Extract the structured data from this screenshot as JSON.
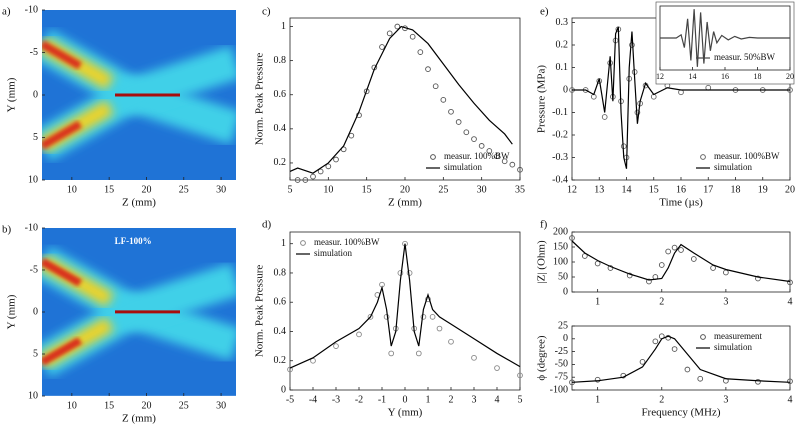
{
  "chart_data": [
    {
      "type": "heatmap",
      "panel_label": "a)",
      "xlabel": "Z (mm)",
      "ylabel": "Y (mm)",
      "xlim": [
        6,
        32
      ],
      "xticks": [
        10,
        15,
        20,
        25,
        30
      ],
      "ylim": [
        10,
        -10
      ],
      "yticks": [
        -10,
        -5,
        0,
        5,
        10
      ]
    },
    {
      "type": "heatmap",
      "panel_label": "b)",
      "annotation": "LF-100%",
      "xlabel": "Z (mm)",
      "ylabel": "Y (mm)",
      "xlim": [
        6,
        32
      ],
      "xticks": [
        10,
        15,
        20,
        25,
        30
      ],
      "ylim": [
        10,
        -10
      ],
      "yticks": [
        -10,
        -5,
        0,
        5,
        10
      ]
    },
    {
      "type": "line",
      "panel_label": "c)",
      "xlabel": "Z (mm)",
      "ylabel": "Norm. Peak Pressure",
      "xlim": [
        5,
        35
      ],
      "xticks": [
        5,
        10,
        15,
        20,
        25,
        30,
        35
      ],
      "ylim": [
        0.1,
        1.05
      ],
      "yticks": [
        0.2,
        0.4,
        0.6,
        0.8,
        1
      ],
      "legend": "lower right",
      "series": [
        {
          "name": "measur. 100%BW",
          "style": "markers",
          "color": "#555555",
          "x": [
            6,
            7,
            8,
            9,
            10,
            11,
            12,
            13,
            14,
            15,
            16,
            17,
            18,
            19,
            20,
            21,
            22,
            23,
            24,
            25,
            26,
            27,
            28,
            29,
            30,
            31,
            32,
            33,
            34,
            35
          ],
          "values": [
            0.1,
            0.1,
            0.12,
            0.15,
            0.18,
            0.22,
            0.28,
            0.36,
            0.48,
            0.62,
            0.76,
            0.88,
            0.96,
            1.0,
            0.99,
            0.94,
            0.85,
            0.75,
            0.65,
            0.57,
            0.5,
            0.44,
            0.38,
            0.34,
            0.3,
            0.27,
            0.24,
            0.21,
            0.19,
            0.16
          ]
        },
        {
          "name": "simulation",
          "style": "line",
          "color": "#000000",
          "x": [
            5,
            6,
            8,
            10,
            12,
            14,
            16,
            18,
            19.5,
            21,
            23,
            25,
            27,
            29,
            31,
            33,
            34
          ],
          "values": [
            0.15,
            0.17,
            0.14,
            0.2,
            0.3,
            0.5,
            0.75,
            0.93,
            1.0,
            0.98,
            0.9,
            0.78,
            0.66,
            0.55,
            0.45,
            0.37,
            0.31
          ]
        }
      ]
    },
    {
      "type": "line",
      "panel_label": "d)",
      "xlabel": "Y (mm)",
      "ylabel": "Norm. Peak Pressure",
      "xlim": [
        -5,
        5
      ],
      "xticks": [
        -5,
        -4,
        -3,
        -2,
        -1,
        0,
        1,
        2,
        3,
        4,
        5
      ],
      "ylim": [
        0,
        1.08
      ],
      "yticks": [
        0,
        0.2,
        0.4,
        0.6,
        0.8,
        1
      ],
      "legend": "upper left",
      "series": [
        {
          "name": "measur. 100%BW",
          "style": "markers",
          "color": "#888888",
          "x": [
            -5,
            -4,
            -3,
            -2,
            -1.5,
            -1.2,
            -1,
            -0.8,
            -0.6,
            -0.4,
            -0.2,
            0,
            0.2,
            0.4,
            0.6,
            0.8,
            1,
            1.2,
            1.5,
            2,
            3,
            4,
            5
          ],
          "values": [
            0.14,
            0.2,
            0.3,
            0.38,
            0.5,
            0.65,
            0.72,
            0.5,
            0.25,
            0.42,
            0.8,
            1.0,
            0.8,
            0.42,
            0.25,
            0.5,
            0.62,
            0.5,
            0.42,
            0.33,
            0.22,
            0.15,
            0.1
          ]
        },
        {
          "name": "simulation",
          "style": "line",
          "color": "#000000",
          "x": [
            -5,
            -4,
            -3,
            -2,
            -1.5,
            -1.2,
            -1,
            -0.8,
            -0.6,
            -0.4,
            -0.2,
            0,
            0.2,
            0.4,
            0.6,
            0.8,
            1,
            1.2,
            1.5,
            2,
            3,
            4,
            5
          ],
          "values": [
            0.15,
            0.22,
            0.33,
            0.42,
            0.5,
            0.6,
            0.7,
            0.55,
            0.3,
            0.4,
            0.75,
            1.0,
            0.75,
            0.4,
            0.3,
            0.55,
            0.65,
            0.55,
            0.5,
            0.45,
            0.35,
            0.25,
            0.16
          ]
        }
      ]
    },
    {
      "type": "line",
      "panel_label": "e)",
      "xlabel": "Time (µs)",
      "ylabel": "Pressure (MPa)",
      "xlim": [
        12,
        20
      ],
      "xticks": [
        12,
        13,
        14,
        15,
        16,
        17,
        18,
        19,
        20
      ],
      "ylim": [
        -0.4,
        0.32
      ],
      "yticks": [
        -0.4,
        -0.3,
        -0.2,
        -0.1,
        0,
        0.1,
        0.2,
        0.3
      ],
      "legend": "lower right",
      "series": [
        {
          "name": "measur. 100%BW",
          "style": "markers",
          "color": "#666666",
          "x": [
            12,
            12.5,
            12.8,
            13,
            13.2,
            13.4,
            13.5,
            13.6,
            13.7,
            13.8,
            13.9,
            14,
            14.1,
            14.2,
            14.3,
            14.4,
            14.5,
            14.7,
            15,
            15.5,
            16,
            17,
            18,
            19,
            20
          ],
          "values": [
            0,
            0,
            -0.03,
            0.04,
            -0.12,
            0.12,
            -0.03,
            0.22,
            0.27,
            -0.05,
            -0.25,
            -0.3,
            0.05,
            0.2,
            0.08,
            -0.1,
            -0.06,
            0.02,
            -0.03,
            0.02,
            -0.01,
            0.01,
            0,
            0,
            0
          ]
        },
        {
          "name": "simulation",
          "style": "line",
          "color": "#000000",
          "x": [
            12,
            12.5,
            12.8,
            13,
            13.2,
            13.4,
            13.5,
            13.6,
            13.7,
            13.8,
            13.9,
            14,
            14.1,
            14.2,
            14.3,
            14.4,
            14.5,
            14.7,
            15,
            15.5,
            16,
            17,
            18,
            19,
            20
          ],
          "values": [
            0,
            0,
            -0.02,
            0.05,
            -0.1,
            0.15,
            -0.05,
            0.25,
            0.28,
            -0.1,
            -0.3,
            -0.35,
            0.1,
            0.26,
            0.05,
            -0.15,
            -0.05,
            0.03,
            -0.02,
            0.01,
            0,
            0,
            0,
            0,
            0
          ]
        }
      ]
    },
    {
      "type": "line",
      "inset": true,
      "xlim": [
        12,
        20
      ],
      "xticks": [
        12,
        14,
        16,
        18,
        20
      ],
      "ylim": [
        -1,
        1
      ],
      "legend": "lower right",
      "series": [
        {
          "name": "measur. 50%BW",
          "style": "line",
          "color": "#444444",
          "x": [
            12,
            13,
            13.3,
            13.5,
            13.7,
            13.9,
            14.1,
            14.3,
            14.5,
            14.7,
            14.9,
            15.1,
            15.3,
            15.5,
            15.8,
            16.2,
            16.6,
            17,
            17.5,
            18,
            19,
            20
          ],
          "values": [
            0,
            0,
            0.1,
            -0.3,
            0.6,
            -0.7,
            0.9,
            -0.9,
            0.8,
            -0.8,
            0.5,
            -0.4,
            0.2,
            -0.15,
            0.08,
            -0.06,
            0.05,
            -0.03,
            0.02,
            0,
            0,
            0
          ]
        }
      ]
    },
    {
      "type": "line",
      "panel_label": "f)",
      "ylabel": "|Z| (Ohm)",
      "xlim": [
        0.6,
        4
      ],
      "xticks": [
        1,
        2,
        3,
        4
      ],
      "ylim": [
        0,
        200
      ],
      "yticks": [
        0,
        50,
        100,
        150,
        200
      ],
      "series": [
        {
          "style": "markers",
          "color": "#555555",
          "x": [
            0.6,
            0.8,
            1,
            1.2,
            1.5,
            1.8,
            1.9,
            2,
            2.1,
            2.2,
            2.3,
            2.5,
            2.8,
            3,
            3.5,
            4
          ],
          "values": [
            180,
            120,
            95,
            80,
            55,
            35,
            50,
            90,
            135,
            148,
            140,
            110,
            80,
            65,
            45,
            32
          ]
        },
        {
          "style": "line",
          "color": "#000000",
          "x": [
            0.6,
            0.8,
            1,
            1.2,
            1.5,
            1.8,
            2,
            2.1,
            2.2,
            2.3,
            2.5,
            2.8,
            3,
            3.5,
            4
          ],
          "values": [
            170,
            130,
            105,
            85,
            60,
            40,
            45,
            80,
            130,
            158,
            130,
            90,
            75,
            50,
            35
          ]
        }
      ]
    },
    {
      "type": "line",
      "xlabel": "Frequency (MHz)",
      "ylabel": "ϕ (degree)",
      "xlim": [
        0.6,
        4
      ],
      "xticks": [
        1,
        2,
        3,
        4
      ],
      "ylim": [
        -100,
        25
      ],
      "yticks": [
        -100,
        -75,
        -50,
        -25,
        0,
        25
      ],
      "legend": "upper right",
      "series": [
        {
          "name": "measurement",
          "style": "markers",
          "color": "#555555",
          "x": [
            0.6,
            1,
            1.4,
            1.7,
            1.9,
            2,
            2.1,
            2.2,
            2.4,
            2.6,
            3,
            3.5,
            4
          ],
          "values": [
            -85,
            -80,
            -72,
            -45,
            -5,
            5,
            2,
            -20,
            -60,
            -78,
            -82,
            -84,
            -83
          ]
        },
        {
          "name": "simulation",
          "style": "line",
          "color": "#000000",
          "x": [
            0.6,
            1,
            1.4,
            1.7,
            1.9,
            2,
            2.1,
            2.2,
            2.4,
            2.6,
            3,
            3.5,
            4
          ],
          "values": [
            -85,
            -82,
            -75,
            -55,
            -20,
            0,
            5,
            0,
            -30,
            -60,
            -78,
            -82,
            -85
          ]
        }
      ]
    }
  ]
}
